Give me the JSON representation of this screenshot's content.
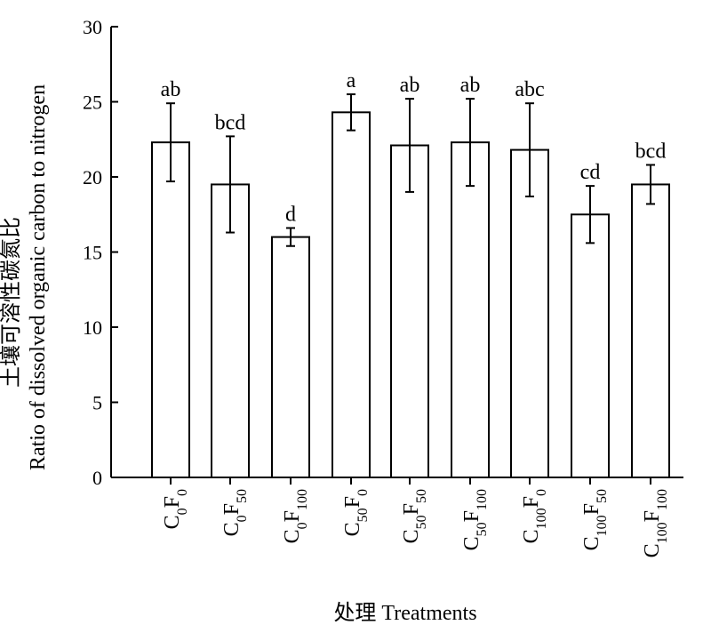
{
  "chart_data": {
    "type": "bar",
    "categories": [
      {
        "base": "C",
        "sub1": "0",
        "mid": "F",
        "sub2": "0"
      },
      {
        "base": "C",
        "sub1": "0",
        "mid": "F",
        "sub2": "50"
      },
      {
        "base": "C",
        "sub1": "0",
        "mid": "F",
        "sub2": "100"
      },
      {
        "base": "C",
        "sub1": "50",
        "mid": "F",
        "sub2": "0"
      },
      {
        "base": "C",
        "sub1": "50",
        "mid": "F",
        "sub2": "50"
      },
      {
        "base": "C",
        "sub1": "50",
        "mid": "F",
        "sub2": "100"
      },
      {
        "base": "C",
        "sub1": "100",
        "mid": "F",
        "sub2": "0"
      },
      {
        "base": "C",
        "sub1": "100",
        "mid": "F",
        "sub2": "50"
      },
      {
        "base": "C",
        "sub1": "100",
        "mid": "F",
        "sub2": "100"
      }
    ],
    "values": [
      22.3,
      19.5,
      16.0,
      24.3,
      22.1,
      22.3,
      21.8,
      17.5,
      19.5
    ],
    "errors": [
      2.6,
      3.2,
      0.6,
      1.2,
      3.1,
      2.9,
      3.1,
      1.9,
      1.3
    ],
    "letters": [
      "ab",
      "bcd",
      "d",
      "a",
      "ab",
      "ab",
      "abc",
      "cd",
      "bcd"
    ],
    "ylim": [
      0,
      30
    ],
    "yticks": [
      0,
      5,
      10,
      15,
      20,
      25,
      30
    ],
    "xlabel": "处理 Treatments",
    "ylabel_line1": "土壤可溶性碳氮比",
    "ylabel_line2": "Ratio of dissolved organic carbon to nitrogen",
    "grid": false,
    "bar_color": "#ffffff",
    "stroke_color": "#000000"
  }
}
